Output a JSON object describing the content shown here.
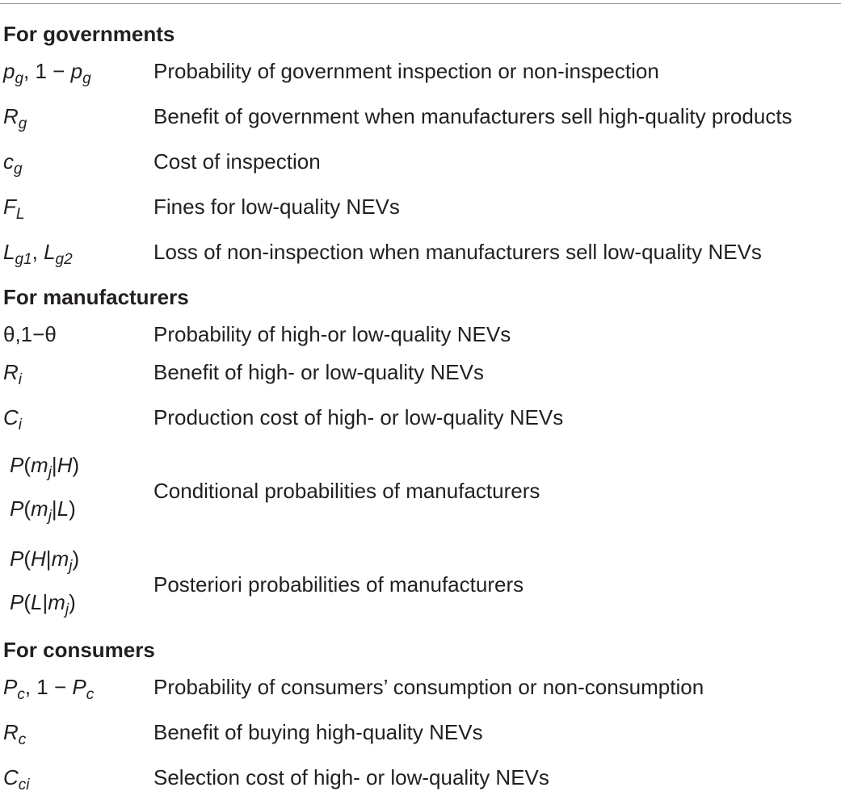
{
  "sections": [
    {
      "title": "For governments",
      "rows": [
        {
          "symbols": [
            [
              {
                "var": "p"
              },
              {
                "sub": "g"
              },
              {
                "text": ", 1 − "
              },
              {
                "var": "p"
              },
              {
                "sub": "g"
              }
            ]
          ],
          "description": "Probability of government inspection or non-inspection"
        },
        {
          "symbols": [
            [
              {
                "var": "R"
              },
              {
                "sub": "g"
              }
            ]
          ],
          "description": "Benefit of government when manufacturers sell high-quality products"
        },
        {
          "symbols": [
            [
              {
                "var": "c"
              },
              {
                "sub": "g"
              }
            ]
          ],
          "description": "Cost of inspection"
        },
        {
          "symbols": [
            [
              {
                "var": "F"
              },
              {
                "sub": "L"
              }
            ]
          ],
          "description": "Fines for low-quality NEVs"
        },
        {
          "symbols": [
            [
              {
                "var": "L"
              },
              {
                "sub": "g1"
              },
              {
                "text": ", "
              },
              {
                "var": "L"
              },
              {
                "sub": "g2"
              }
            ]
          ],
          "description": "Loss of non-inspection when manufacturers sell low-quality NEVs"
        }
      ]
    },
    {
      "title": "For manufacturers",
      "rows": [
        {
          "symbols": [
            [
              {
                "text": "θ,1−θ"
              }
            ]
          ],
          "description": "Probability of high-or low-quality NEVs"
        },
        {
          "symbols": [
            [
              {
                "var": "R"
              },
              {
                "sub": "i"
              }
            ]
          ],
          "description": "Benefit of high- or low-quality NEVs"
        },
        {
          "symbols": [
            [
              {
                "var": "C"
              },
              {
                "sub": "i"
              }
            ]
          ],
          "description": "Production cost of high- or low-quality NEVs"
        },
        {
          "symbols": [
            [
              {
                "var": "P"
              },
              {
                "text": "("
              },
              {
                "var": "m"
              },
              {
                "sub": "j"
              },
              {
                "text": "|"
              },
              {
                "var": "H"
              },
              {
                "text": ")"
              }
            ],
            [
              {
                "var": "P"
              },
              {
                "text": "("
              },
              {
                "var": "m"
              },
              {
                "sub": "j"
              },
              {
                "text": "|"
              },
              {
                "var": "L"
              },
              {
                "text": ")"
              }
            ]
          ],
          "description": "Conditional probabilities of manufacturers"
        },
        {
          "symbols": [
            [
              {
                "var": "P"
              },
              {
                "text": "("
              },
              {
                "var": "H"
              },
              {
                "text": "|"
              },
              {
                "var": "m"
              },
              {
                "sub": "j"
              },
              {
                "text": ")"
              }
            ],
            [
              {
                "var": "P"
              },
              {
                "text": "("
              },
              {
                "var": "L"
              },
              {
                "text": "|"
              },
              {
                "var": "m"
              },
              {
                "sub": "j"
              },
              {
                "text": ")"
              }
            ]
          ],
          "description": "Posteriori probabilities of manufacturers"
        }
      ]
    },
    {
      "title": "For consumers",
      "rows": [
        {
          "symbols": [
            [
              {
                "var": "P"
              },
              {
                "sub": "c"
              },
              {
                "text": ", 1 − "
              },
              {
                "var": "P"
              },
              {
                "sub": "c"
              }
            ]
          ],
          "description": "Probability of consumers’ consumption or non-consumption"
        },
        {
          "symbols": [
            [
              {
                "var": "R"
              },
              {
                "sub": "c"
              }
            ]
          ],
          "description": "Benefit of buying high-quality NEVs"
        },
        {
          "symbols": [
            [
              {
                "var": "C"
              },
              {
                "sub": "ci"
              }
            ]
          ],
          "description": "Selection cost of high- or low-quality NEVs"
        }
      ]
    }
  ]
}
